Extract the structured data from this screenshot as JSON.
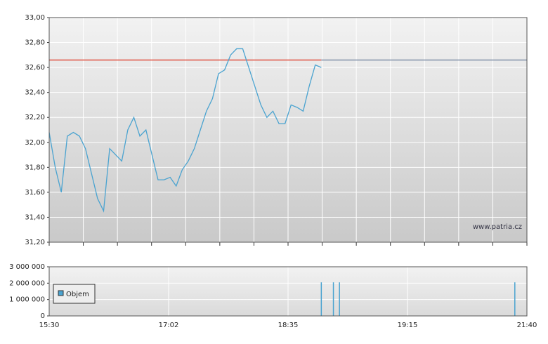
{
  "chart_data": [
    {
      "type": "line",
      "color": "#4aa3d0",
      "grid": true,
      "values": [
        32.08,
        31.8,
        31.6,
        32.05,
        32.08,
        32.05,
        31.95,
        31.75,
        31.55,
        31.45,
        31.95,
        31.9,
        31.85,
        32.1,
        32.2,
        32.05,
        32.1,
        31.9,
        31.7,
        31.7,
        31.72,
        31.65,
        31.78,
        31.85,
        31.95,
        32.1,
        32.25,
        32.35,
        32.55,
        32.58,
        32.7,
        32.75,
        32.75,
        32.6,
        32.45,
        32.3,
        32.2,
        32.25,
        32.15,
        32.15,
        32.3,
        32.28,
        32.25,
        32.45,
        32.62,
        32.6,
        null,
        null,
        null,
        null,
        null,
        null,
        null,
        null,
        null,
        null,
        null,
        null,
        null,
        null,
        null,
        null,
        null,
        null,
        null,
        null,
        null,
        null,
        null,
        null,
        null,
        null,
        null,
        null,
        null,
        null,
        null,
        null,
        null,
        null
      ],
      "reference_value": 32.66,
      "reference_color": "#e05040",
      "reference_color_after": "#8090a8",
      "ylim": [
        31.2,
        33.0
      ],
      "yticks": [
        {
          "value": 31.2,
          "label": "31,20"
        },
        {
          "value": 31.4,
          "label": "31,40"
        },
        {
          "value": 31.6,
          "label": "31,60"
        },
        {
          "value": 31.8,
          "label": "31,80"
        },
        {
          "value": 32.0,
          "label": "32,00"
        },
        {
          "value": 32.2,
          "label": "32,20"
        },
        {
          "value": 32.4,
          "label": "32,40"
        },
        {
          "value": 32.6,
          "label": "32,60"
        },
        {
          "value": 32.8,
          "label": "32,80"
        },
        {
          "value": 33.0,
          "label": "33,00"
        }
      ],
      "watermark": "www.patria.cz"
    },
    {
      "type": "bar",
      "grid": true,
      "series": [
        {
          "name": "Objem",
          "color": "#4aa3d0",
          "values": [
            null,
            null,
            null,
            null,
            null,
            null,
            null,
            null,
            null,
            null,
            null,
            null,
            null,
            null,
            null,
            null,
            null,
            null,
            null,
            null,
            null,
            null,
            null,
            null,
            null,
            null,
            null,
            null,
            null,
            null,
            null,
            null,
            null,
            null,
            null,
            null,
            null,
            null,
            null,
            null,
            null,
            null,
            null,
            null,
            null,
            2050000,
            null,
            2050000,
            2050000,
            null,
            null,
            null,
            null,
            null,
            null,
            null,
            null,
            null,
            null,
            null,
            null,
            null,
            null,
            null,
            null,
            null,
            null,
            null,
            null,
            null,
            null,
            null,
            null,
            null,
            null,
            null,
            null,
            2050000,
            null,
            null
          ]
        }
      ],
      "ylim": [
        0,
        3000000
      ],
      "yticks": [
        0,
        {
          "value": 1000000,
          "label": "1 000 000"
        },
        {
          "value": 2000000,
          "label": "2 000 000"
        },
        {
          "value": 3000000,
          "label": "3 000 000"
        }
      ],
      "x_labels": [
        "15:30",
        "17:02",
        "18:35",
        "19:15",
        "21:40"
      ]
    }
  ]
}
